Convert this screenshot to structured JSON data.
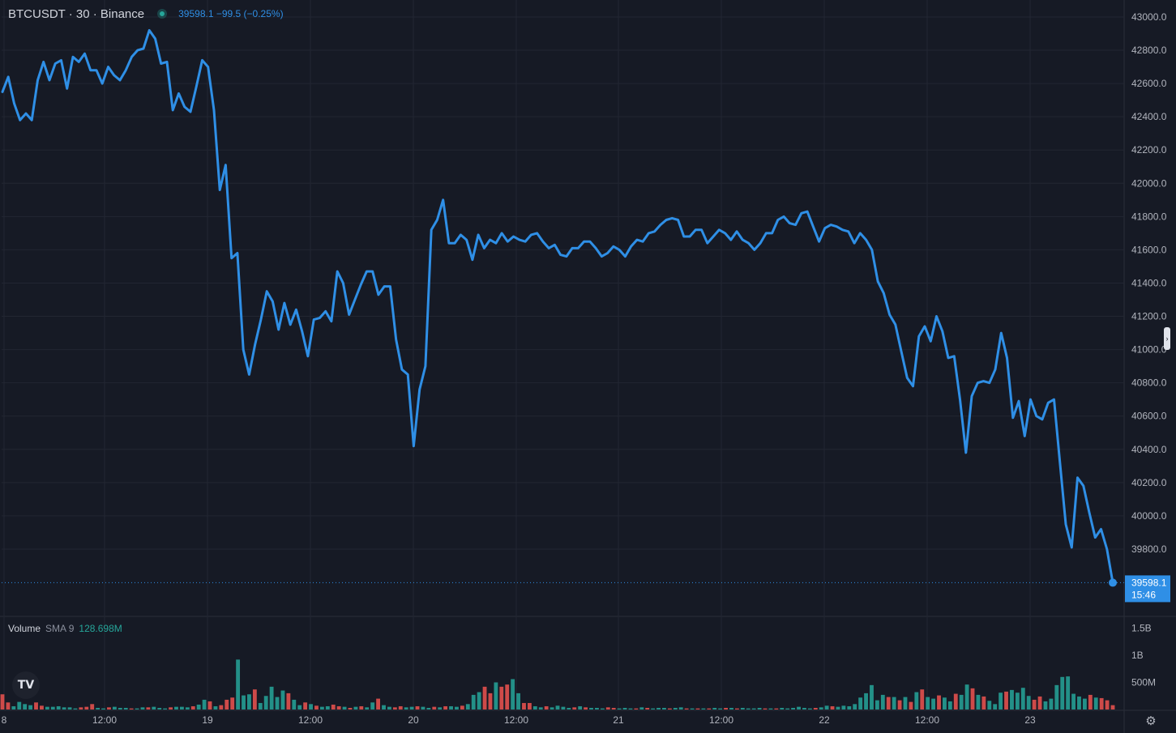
{
  "header": {
    "symbol_line": "BTCUSDT · 30 · Binance",
    "price_line": "39598.1 −99.5 (−0.25%)"
  },
  "price_scale": {
    "ticks": [
      "43000.0",
      "42800.0",
      "42600.0",
      "42400.0",
      "42200.0",
      "42000.0",
      "41800.0",
      "41600.0",
      "41400.0",
      "41200.0",
      "41000.0",
      "40800.0",
      "40600.0",
      "40400.0",
      "40200.0",
      "40000.0",
      "39800.0"
    ],
    "last_price_label": "39598.1",
    "countdown_label": "15:46"
  },
  "volume_pane": {
    "title": "Volume",
    "sma_label": "SMA 9",
    "sma_value": "128.698M",
    "ticks": [
      "1.5B",
      "1B",
      "500M"
    ]
  },
  "time_axis": {
    "labels": [
      "8",
      "12:00",
      "19",
      "12:00",
      "20",
      "12:00",
      "21",
      "12:00",
      "22",
      "12:00",
      "23"
    ]
  },
  "icons": {
    "logo": "tradingview-logo-icon",
    "settings": "settings-gear-icon",
    "scale_handle": "scale-collapse-handle-icon"
  },
  "colors": {
    "background": "#161a25",
    "line": "#2f8fe6",
    "volume_up": "#26a69a",
    "volume_down": "#ef5350",
    "live_dot": "#26a69a"
  },
  "chart_data": {
    "type": "line",
    "symbol": "BTCUSDT",
    "interval_minutes": 30,
    "exchange": "Binance",
    "ylim": [
      39500,
      43050
    ],
    "price_series": [
      42550,
      42640,
      42480,
      42380,
      42420,
      42380,
      42620,
      42730,
      42620,
      42720,
      42740,
      42570,
      42760,
      42730,
      42780,
      42680,
      42680,
      42600,
      42700,
      42650,
      42620,
      42680,
      42760,
      42800,
      42810,
      42920,
      42870,
      42720,
      42730,
      42440,
      42540,
      42460,
      42430,
      42580,
      42740,
      42700,
      42440,
      41960,
      42110,
      41550,
      41580,
      41000,
      40850,
      41030,
      41180,
      41350,
      41290,
      41120,
      41280,
      41150,
      41240,
      41110,
      40960,
      41180,
      41190,
      41230,
      41170,
      41470,
      41400,
      41210,
      41300,
      41390,
      41470,
      41470,
      41330,
      41380,
      41380,
      41060,
      40880,
      40850,
      40420,
      40760,
      40900,
      41720,
      41780,
      41900,
      41640,
      41640,
      41690,
      41660,
      41540,
      41690,
      41610,
      41660,
      41640,
      41700,
      41650,
      41680,
      41660,
      41650,
      41690,
      41700,
      41650,
      41610,
      41630,
      41570,
      41560,
      41610,
      41610,
      41650,
      41650,
      41610,
      41560,
      41580,
      41620,
      41600,
      41560,
      41620,
      41660,
      41650,
      41700,
      41710,
      41750,
      41780,
      41790,
      41780,
      41680,
      41680,
      41720,
      41720,
      41640,
      41680,
      41720,
      41700,
      41660,
      41710,
      41660,
      41640,
      41600,
      41640,
      41700,
      41700,
      41780,
      41800,
      41760,
      41750,
      41820,
      41830,
      41740,
      41650,
      41730,
      41750,
      41740,
      41720,
      41710,
      41640,
      41700,
      41660,
      41600,
      41410,
      41340,
      41210,
      41150,
      40990,
      40830,
      40780,
      41080,
      41140,
      41050,
      41200,
      41110,
      40950,
      40960,
      40700,
      40380,
      40720,
      40800,
      40810,
      40800,
      40880,
      41100,
      40950,
      40590,
      40690,
      40480,
      40700,
      40600,
      40580,
      40680,
      40700,
      40320,
      39950,
      39810,
      40230,
      40180,
      40020,
      39870,
      39920,
      39800,
      39598.1
    ],
    "volume_series": [
      [
        0.28,
        0
      ],
      [
        0.13,
        0
      ],
      [
        0.06,
        1
      ],
      [
        0.14,
        1
      ],
      [
        0.1,
        1
      ],
      [
        0.08,
        1
      ],
      [
        0.13,
        0
      ],
      [
        0.07,
        0
      ],
      [
        0.05,
        1
      ],
      [
        0.05,
        1
      ],
      [
        0.06,
        1
      ],
      [
        0.04,
        1
      ],
      [
        0.04,
        1
      ],
      [
        0.02,
        1
      ],
      [
        0.04,
        0
      ],
      [
        0.05,
        0
      ],
      [
        0.1,
        0
      ],
      [
        0.03,
        1
      ],
      [
        0.02,
        1
      ],
      [
        0.04,
        0
      ],
      [
        0.05,
        1
      ],
      [
        0.03,
        1
      ],
      [
        0.03,
        1
      ],
      [
        0.02,
        0
      ],
      [
        0.02,
        1
      ],
      [
        0.04,
        1
      ],
      [
        0.04,
        0
      ],
      [
        0.05,
        1
      ],
      [
        0.03,
        1
      ],
      [
        0.02,
        1
      ],
      [
        0.04,
        0
      ],
      [
        0.05,
        1
      ],
      [
        0.05,
        1
      ],
      [
        0.04,
        1
      ],
      [
        0.06,
        0
      ],
      [
        0.09,
        1
      ],
      [
        0.18,
        1
      ],
      [
        0.15,
        0
      ],
      [
        0.06,
        1
      ],
      [
        0.08,
        0
      ],
      [
        0.18,
        0
      ],
      [
        0.22,
        0
      ],
      [
        0.92,
        1
      ],
      [
        0.26,
        1
      ],
      [
        0.28,
        1
      ],
      [
        0.37,
        0
      ],
      [
        0.12,
        1
      ],
      [
        0.25,
        1
      ],
      [
        0.42,
        1
      ],
      [
        0.23,
        1
      ],
      [
        0.35,
        1
      ],
      [
        0.3,
        0
      ],
      [
        0.18,
        1
      ],
      [
        0.08,
        1
      ],
      [
        0.13,
        0
      ],
      [
        0.1,
        1
      ],
      [
        0.07,
        0
      ],
      [
        0.05,
        1
      ],
      [
        0.06,
        1
      ],
      [
        0.09,
        0
      ],
      [
        0.06,
        0
      ],
      [
        0.05,
        1
      ],
      [
        0.03,
        0
      ],
      [
        0.05,
        1
      ],
      [
        0.06,
        0
      ],
      [
        0.04,
        1
      ],
      [
        0.13,
        1
      ],
      [
        0.2,
        0
      ],
      [
        0.08,
        1
      ],
      [
        0.05,
        1
      ],
      [
        0.04,
        0
      ],
      [
        0.06,
        0
      ],
      [
        0.04,
        1
      ],
      [
        0.05,
        1
      ],
      [
        0.06,
        0
      ],
      [
        0.05,
        1
      ],
      [
        0.03,
        1
      ],
      [
        0.05,
        0
      ],
      [
        0.04,
        1
      ],
      [
        0.06,
        0
      ],
      [
        0.06,
        1
      ],
      [
        0.05,
        1
      ],
      [
        0.07,
        0
      ],
      [
        0.1,
        1
      ],
      [
        0.27,
        1
      ],
      [
        0.32,
        1
      ],
      [
        0.42,
        0
      ],
      [
        0.3,
        0
      ],
      [
        0.5,
        1
      ],
      [
        0.42,
        0
      ],
      [
        0.46,
        0
      ],
      [
        0.56,
        1
      ],
      [
        0.3,
        1
      ],
      [
        0.12,
        0
      ],
      [
        0.12,
        0
      ],
      [
        0.06,
        1
      ],
      [
        0.04,
        1
      ],
      [
        0.06,
        0
      ],
      [
        0.04,
        1
      ],
      [
        0.07,
        1
      ],
      [
        0.05,
        1
      ],
      [
        0.03,
        1
      ],
      [
        0.04,
        0
      ],
      [
        0.06,
        1
      ],
      [
        0.04,
        0
      ],
      [
        0.03,
        1
      ],
      [
        0.03,
        1
      ],
      [
        0.02,
        1
      ],
      [
        0.04,
        0
      ],
      [
        0.03,
        0
      ],
      [
        0.02,
        1
      ],
      [
        0.03,
        1
      ],
      [
        0.02,
        1
      ],
      [
        0.02,
        0
      ],
      [
        0.04,
        1
      ],
      [
        0.03,
        0
      ],
      [
        0.02,
        1
      ],
      [
        0.03,
        1
      ],
      [
        0.03,
        1
      ],
      [
        0.02,
        0
      ],
      [
        0.03,
        1
      ],
      [
        0.04,
        1
      ],
      [
        0.02,
        0
      ],
      [
        0.02,
        1
      ],
      [
        0.02,
        0
      ],
      [
        0.02,
        1
      ],
      [
        0.02,
        0
      ],
      [
        0.03,
        1
      ],
      [
        0.02,
        1
      ],
      [
        0.03,
        0
      ],
      [
        0.03,
        1
      ],
      [
        0.02,
        0
      ],
      [
        0.03,
        1
      ],
      [
        0.02,
        1
      ],
      [
        0.02,
        1
      ],
      [
        0.03,
        1
      ],
      [
        0.02,
        0
      ],
      [
        0.02,
        1
      ],
      [
        0.02,
        0
      ],
      [
        0.03,
        1
      ],
      [
        0.02,
        1
      ],
      [
        0.03,
        1
      ],
      [
        0.05,
        1
      ],
      [
        0.03,
        1
      ],
      [
        0.02,
        1
      ],
      [
        0.03,
        0
      ],
      [
        0.04,
        1
      ],
      [
        0.07,
        1
      ],
      [
        0.06,
        0
      ],
      [
        0.05,
        1
      ],
      [
        0.07,
        1
      ],
      [
        0.06,
        1
      ],
      [
        0.1,
        1
      ],
      [
        0.22,
        1
      ],
      [
        0.3,
        1
      ],
      [
        0.45,
        1
      ],
      [
        0.17,
        1
      ],
      [
        0.27,
        1
      ],
      [
        0.23,
        0
      ],
      [
        0.23,
        1
      ],
      [
        0.17,
        0
      ],
      [
        0.23,
        1
      ],
      [
        0.14,
        0
      ],
      [
        0.32,
        1
      ],
      [
        0.37,
        0
      ],
      [
        0.23,
        1
      ],
      [
        0.2,
        1
      ],
      [
        0.26,
        0
      ],
      [
        0.22,
        1
      ],
      [
        0.15,
        1
      ],
      [
        0.29,
        0
      ],
      [
        0.27,
        1
      ],
      [
        0.46,
        1
      ],
      [
        0.39,
        0
      ],
      [
        0.27,
        1
      ],
      [
        0.24,
        0
      ],
      [
        0.16,
        1
      ],
      [
        0.1,
        1
      ],
      [
        0.31,
        1
      ],
      [
        0.33,
        0
      ],
      [
        0.36,
        1
      ],
      [
        0.31,
        1
      ],
      [
        0.4,
        1
      ],
      [
        0.25,
        1
      ],
      [
        0.18,
        0
      ],
      [
        0.24,
        0
      ],
      [
        0.15,
        1
      ],
      [
        0.2,
        1
      ],
      [
        0.45,
        1
      ],
      [
        0.6,
        1
      ],
      [
        0.61,
        1
      ],
      [
        0.29,
        1
      ],
      [
        0.24,
        1
      ],
      [
        0.2,
        1
      ],
      [
        0.27,
        0
      ],
      [
        0.22,
        1
      ],
      [
        0.21,
        0
      ],
      [
        0.17,
        0
      ],
      [
        0.08,
        0
      ]
    ]
  }
}
